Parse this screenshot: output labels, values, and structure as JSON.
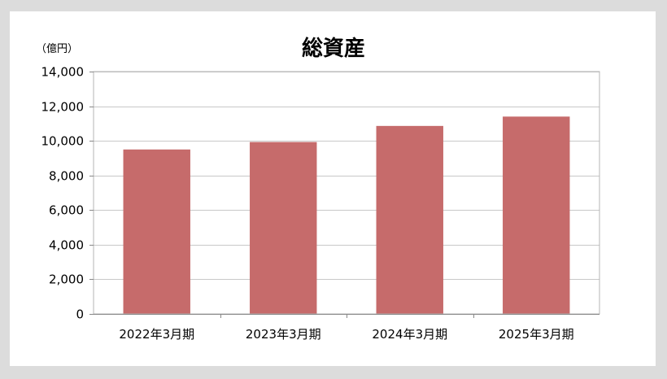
{
  "chart_data": {
    "type": "bar",
    "title": "総資産",
    "unit_label": "（億円）",
    "categories": [
      "2022年3月期",
      "2023年3月期",
      "2024年3月期",
      "2025年3月期"
    ],
    "values": [
      9500,
      9930,
      10860,
      11400
    ],
    "ylim": [
      0,
      14000
    ],
    "yticks": [
      0,
      2000,
      4000,
      6000,
      8000,
      10000,
      12000,
      14000
    ],
    "ytick_labels": [
      "0",
      "2,000",
      "4,000",
      "6,000",
      "8,000",
      "10,000",
      "12,000",
      "14,000"
    ],
    "grid": true,
    "legend": "none",
    "bar_color": "#c66b6b",
    "grid_color": "#c8c8c8"
  }
}
